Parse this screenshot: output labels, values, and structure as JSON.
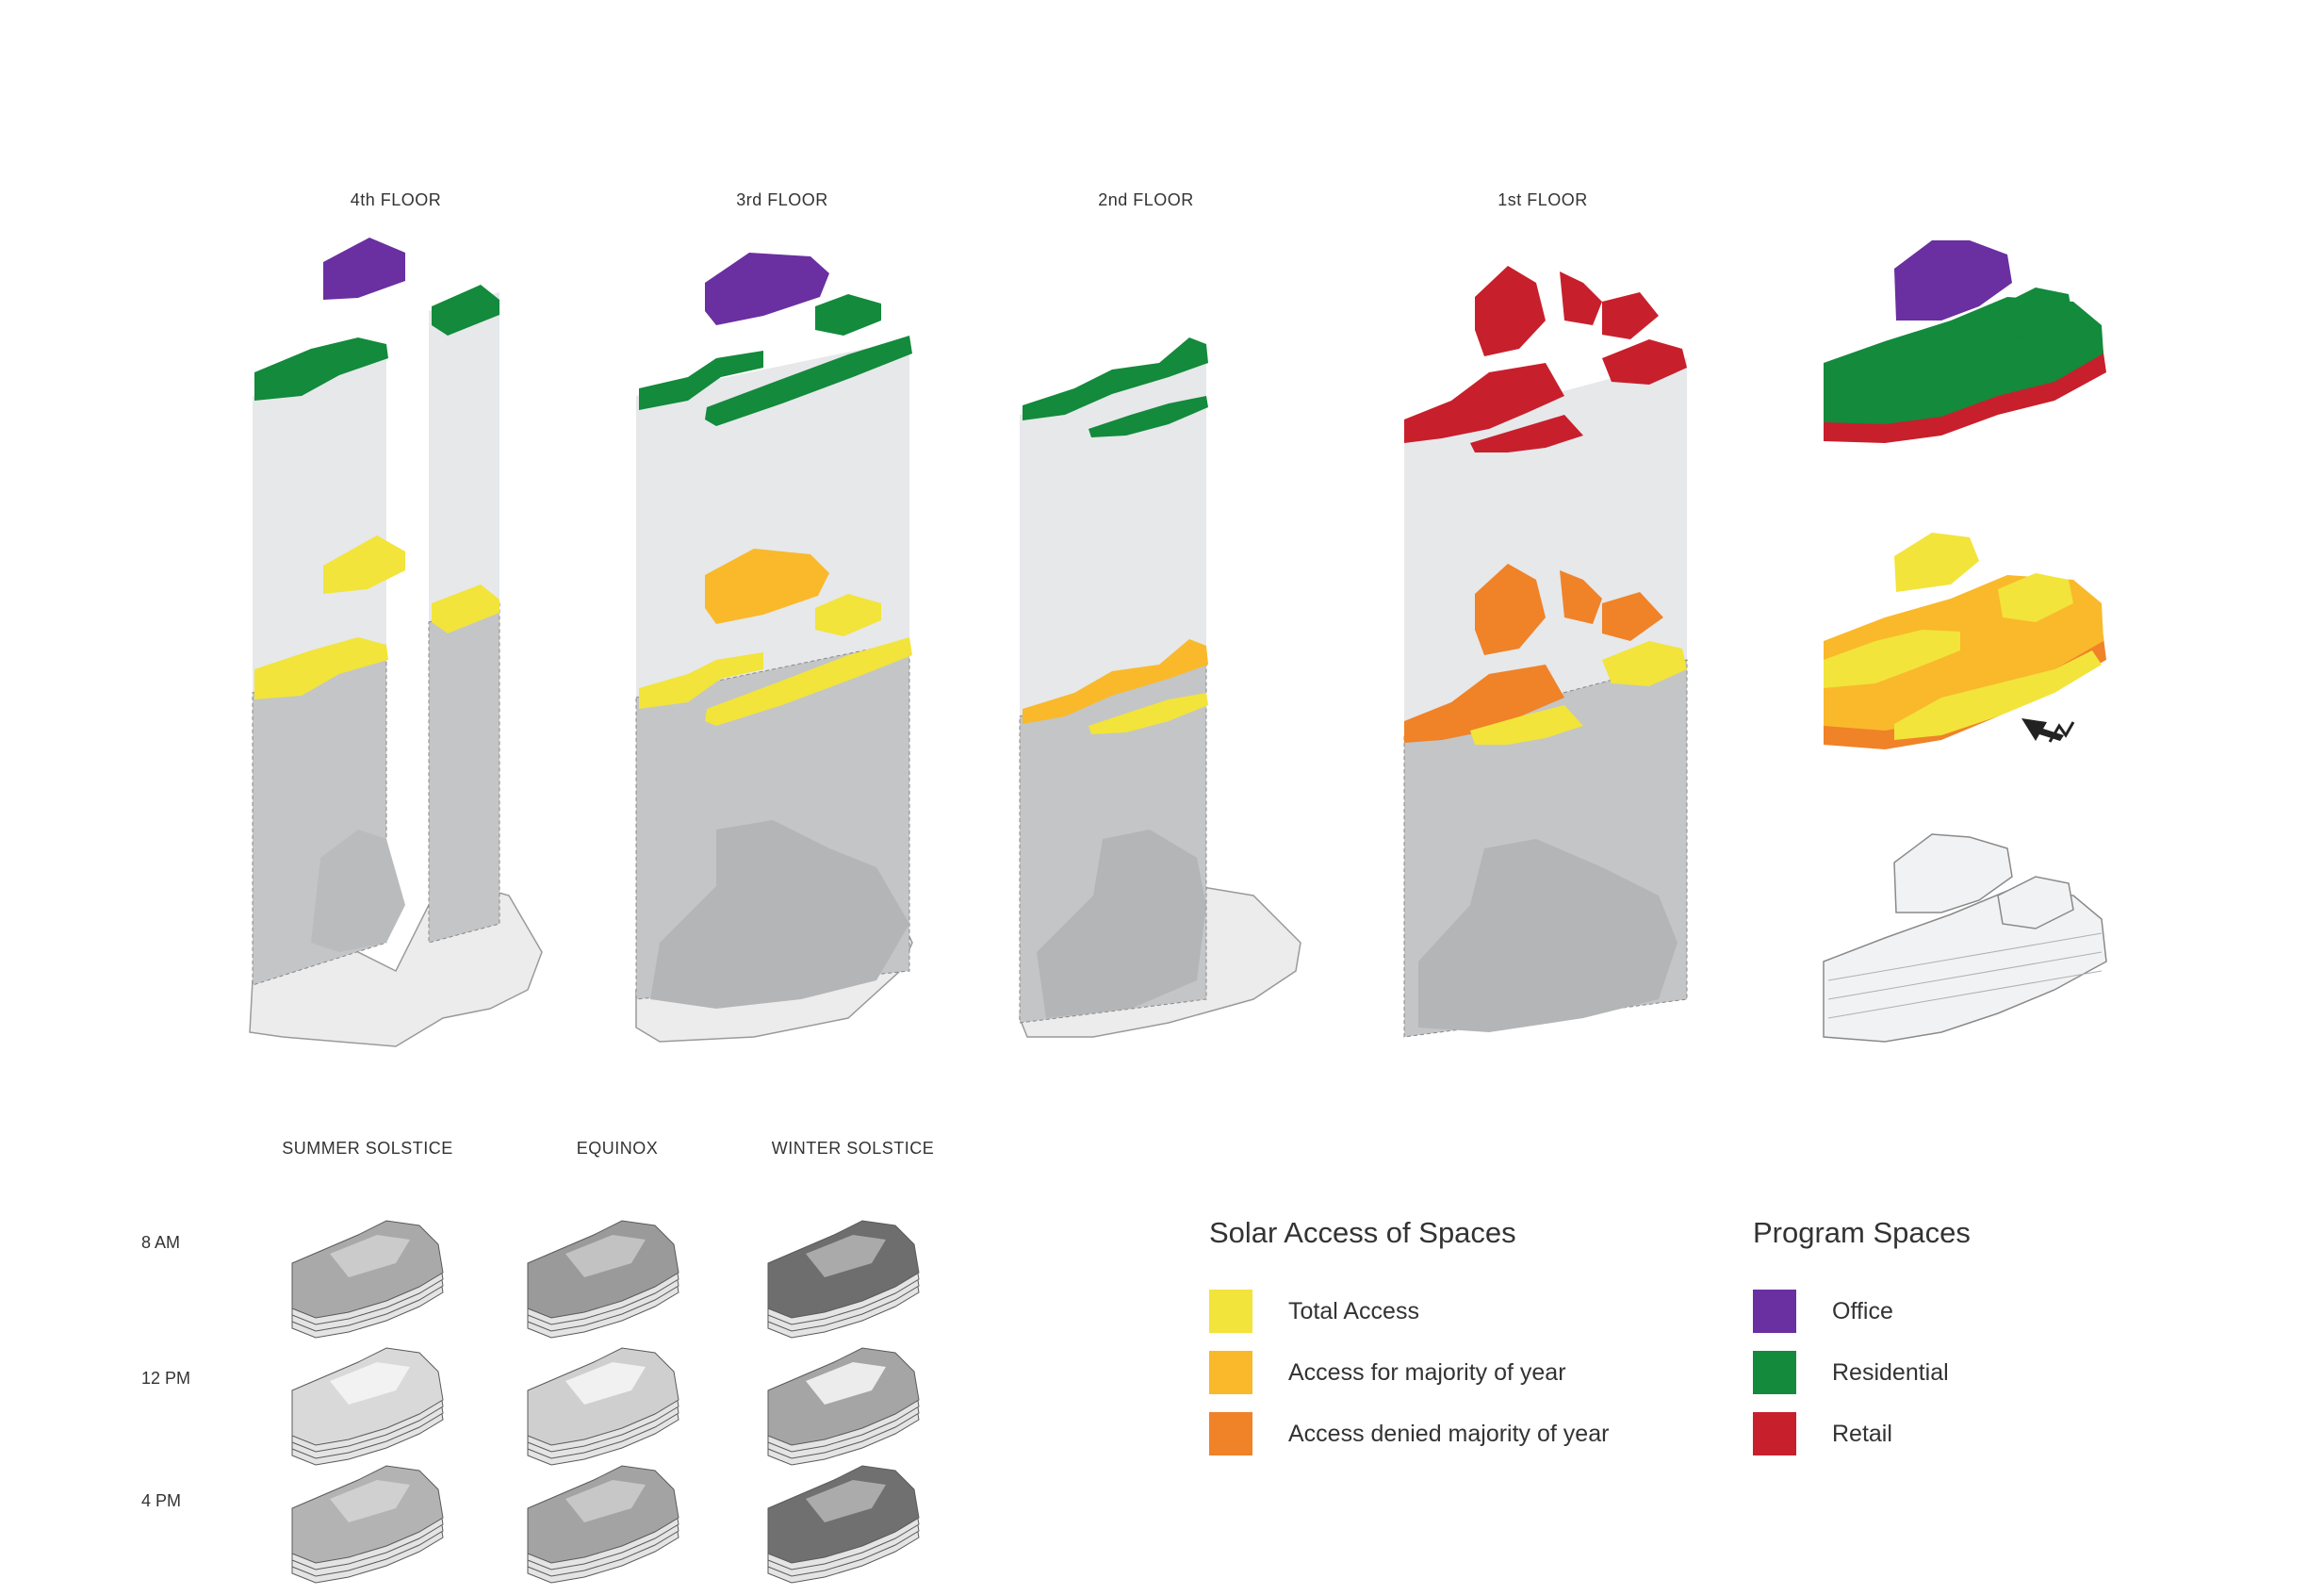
{
  "floors": [
    "4th FLOOR",
    "3rd FLOOR",
    "2nd FLOOR",
    "1st FLOOR"
  ],
  "seasons": [
    "SUMMER SOLSTICE",
    "EQUINOX",
    "WINTER SOLSTICE"
  ],
  "times": [
    "8 AM",
    "12 PM",
    "4 PM"
  ],
  "legend_solar": {
    "title": "Solar Access of Spaces",
    "items": [
      {
        "label": "Total Access",
        "color": "#f2e43a"
      },
      {
        "label": "Access for majority of year",
        "color": "#f9b92b"
      },
      {
        "label": "Access denied majority of year",
        "color": "#f08228"
      }
    ]
  },
  "legend_program": {
    "title": "Program Spaces",
    "items": [
      {
        "label": "Office",
        "color": "#6a2fa0"
      },
      {
        "label": "Residential",
        "color": "#138a3c"
      },
      {
        "label": "Retail",
        "color": "#c81f2c"
      }
    ]
  },
  "colors": {
    "column": "#e6e8ea",
    "shadow": "#c3c5c7",
    "ground": "#ececed",
    "groundEdge": "#9a9a9a"
  }
}
